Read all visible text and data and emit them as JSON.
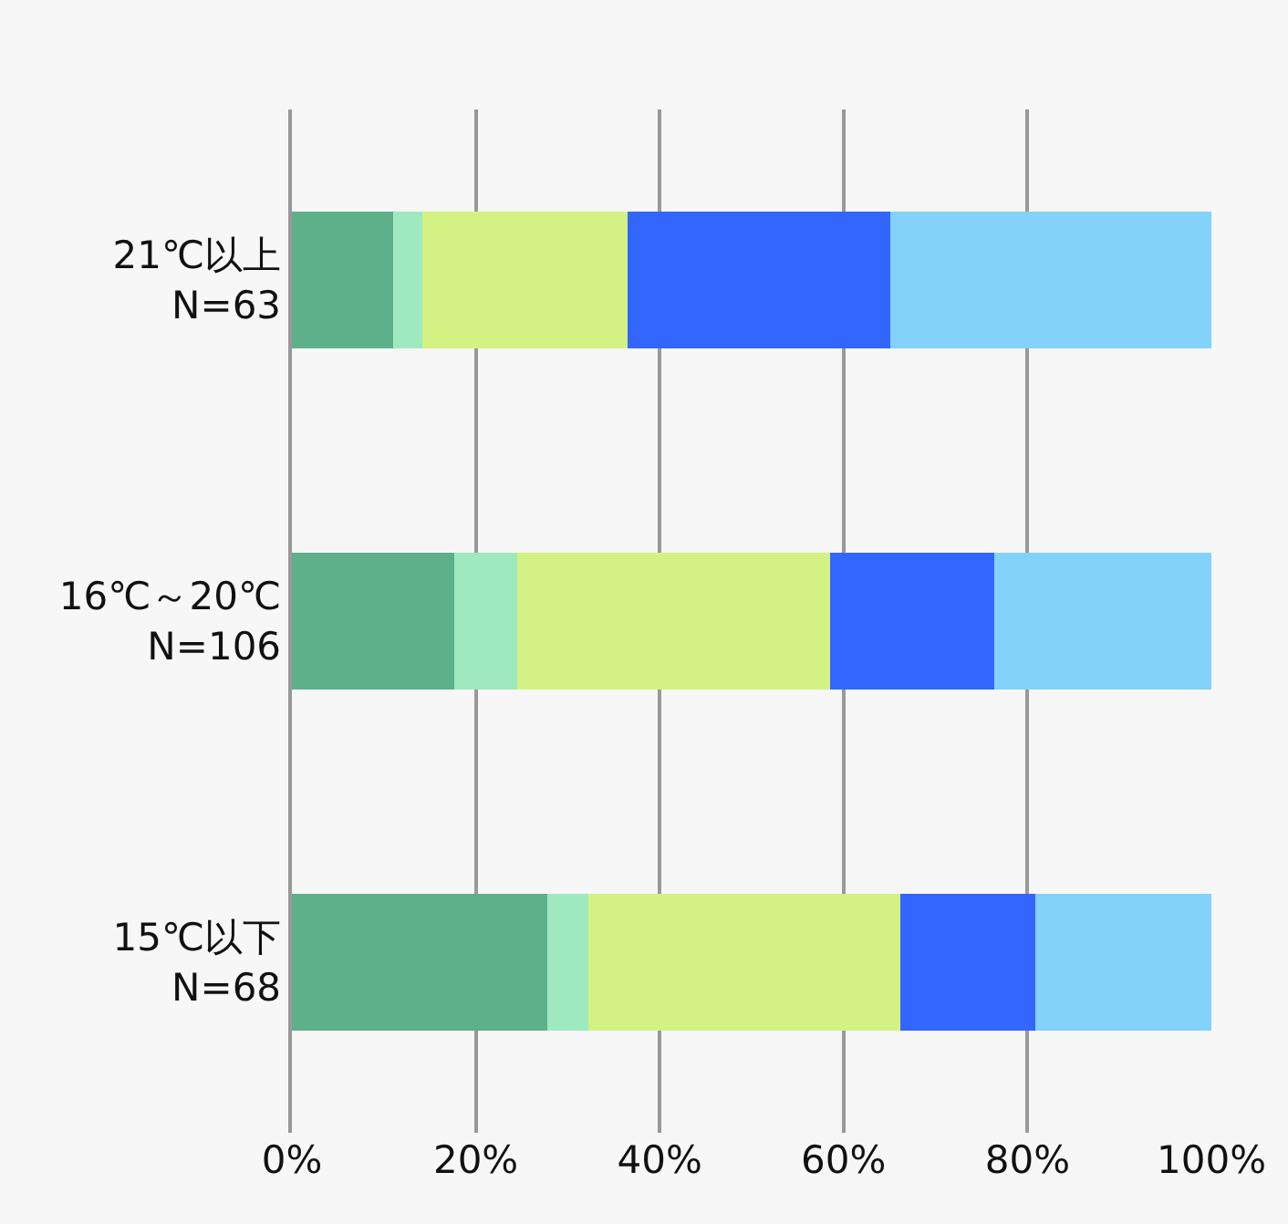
{
  "chart_data": {
    "type": "bar",
    "orientation": "horizontal",
    "stacked": true,
    "categories": [
      "21℃以上\nN=63",
      "16℃～20℃\nN=106",
      "15℃以下\nN=68"
    ],
    "series": [
      {
        "color": "#5db08a",
        "values": [
          11.0,
          17.7,
          27.8
        ]
      },
      {
        "color": "#9ee9bf",
        "values": [
          3.2,
          6.8,
          4.4
        ]
      },
      {
        "color": "#d3f283",
        "values": [
          22.3,
          34.0,
          34.0
        ]
      },
      {
        "color": "#3366ff",
        "values": [
          28.6,
          17.9,
          14.7
        ]
      },
      {
        "color": "#82d2fa",
        "values": [
          34.9,
          23.6,
          19.1
        ]
      }
    ],
    "xlim": [
      0,
      100
    ],
    "xticks": [
      {
        "value": 0,
        "label": "0%"
      },
      {
        "value": 20,
        "label": "20%"
      },
      {
        "value": 40,
        "label": "40%"
      },
      {
        "value": 60,
        "label": "60%"
      },
      {
        "value": 80,
        "label": "80%"
      },
      {
        "value": 100,
        "label": "100%"
      }
    ],
    "grid": "x"
  }
}
